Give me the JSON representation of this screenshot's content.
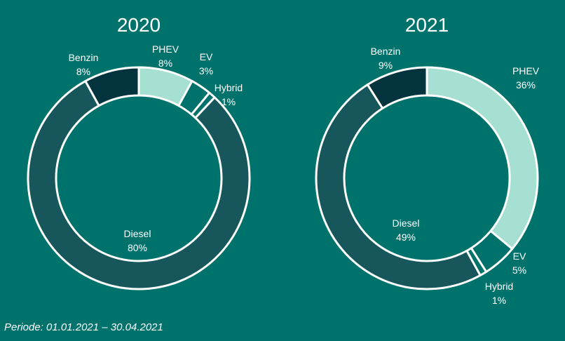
{
  "chart_data": [
    {
      "type": "pie",
      "title": "2020",
      "categories": [
        "PHEV",
        "EV",
        "Hybrid",
        "Diesel",
        "Benzin"
      ],
      "values": [
        8,
        3,
        1,
        80,
        8
      ],
      "value_labels": [
        "8%",
        "3%",
        "1%",
        "80%",
        "8%"
      ],
      "colors": [
        "#a6e0d2",
        "#00726c",
        "#00726c",
        "#17565a",
        "#03333d"
      ]
    },
    {
      "type": "pie",
      "title": "2021",
      "categories": [
        "PHEV",
        "EV",
        "Hybrid",
        "Diesel",
        "Benzin"
      ],
      "values": [
        36,
        5,
        1,
        49,
        9
      ],
      "value_labels": [
        "36%",
        "5%",
        "1%",
        "49%",
        "9%"
      ],
      "colors": [
        "#a6e0d2",
        "#00726c",
        "#00726c",
        "#17565a",
        "#03333d"
      ]
    }
  ],
  "footnote": "Periode: 01.01.2021 – 30.04.2021"
}
